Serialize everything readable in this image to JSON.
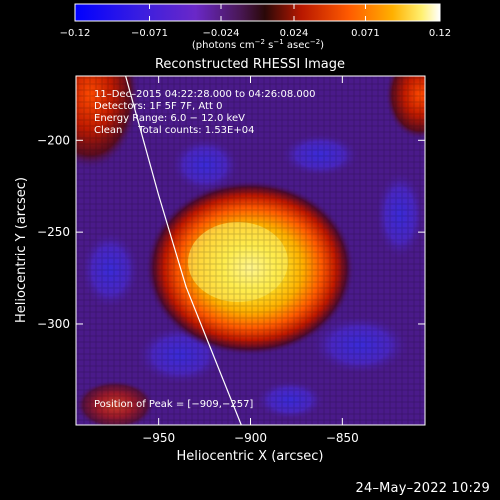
{
  "chart_data": {
    "type": "heatmap",
    "title": "Reconstructed RHESSI Image",
    "xlabel": "Heliocentric X (arcsec)",
    "ylabel": "Heliocentric Y (arcsec)",
    "xlim": [
      -995,
      -805
    ],
    "ylim": [
      -355,
      -165
    ],
    "xticks": [
      -950,
      -900,
      -850
    ],
    "yticks": [
      -200,
      -250,
      -300
    ],
    "xtick_labels": [
      "−950",
      "−900",
      "−850"
    ],
    "ytick_labels": [
      "−200",
      "−250",
      "−300"
    ],
    "colorbar": {
      "min": -0.12,
      "max": 0.12,
      "ticks": [
        -0.12,
        -0.071,
        -0.024,
        0.024,
        0.071,
        0.12
      ],
      "tick_labels": [
        "−0.12",
        "−0.071",
        "−0.024",
        "0.024",
        "0.071",
        "0.12"
      ],
      "unit_text": "(photons cm",
      "unit_sup1": "−2",
      "unit_mid": " s",
      "unit_sup2": "−1",
      "unit_mid2": " asec",
      "unit_sup3": "−2",
      "unit_end": ")",
      "colormap": "rainbow-blue-purple-red-yellow-white"
    },
    "annotations": {
      "time_range": "11–Dec–2015 04:22:28.000 to 04:26:08.000",
      "detectors": "Detectors: 1F 5F 7F, Att 0",
      "energy": "Energy Range: 6.0 − 12.0 keV",
      "method_counts": "Clean     Total counts: 1.53E+04",
      "peak": "Position of Peak = [−909,−257]"
    },
    "source_peak": {
      "x": -909,
      "y": -257,
      "value": 0.12
    },
    "limb_curve": [
      [
        -968,
        -165
      ],
      [
        -950,
        -230
      ],
      [
        -935,
        -280
      ],
      [
        -915,
        -330
      ],
      [
        -905,
        -355
      ]
    ]
  },
  "footer": {
    "timestamp": "24–May–2022 10:29"
  }
}
